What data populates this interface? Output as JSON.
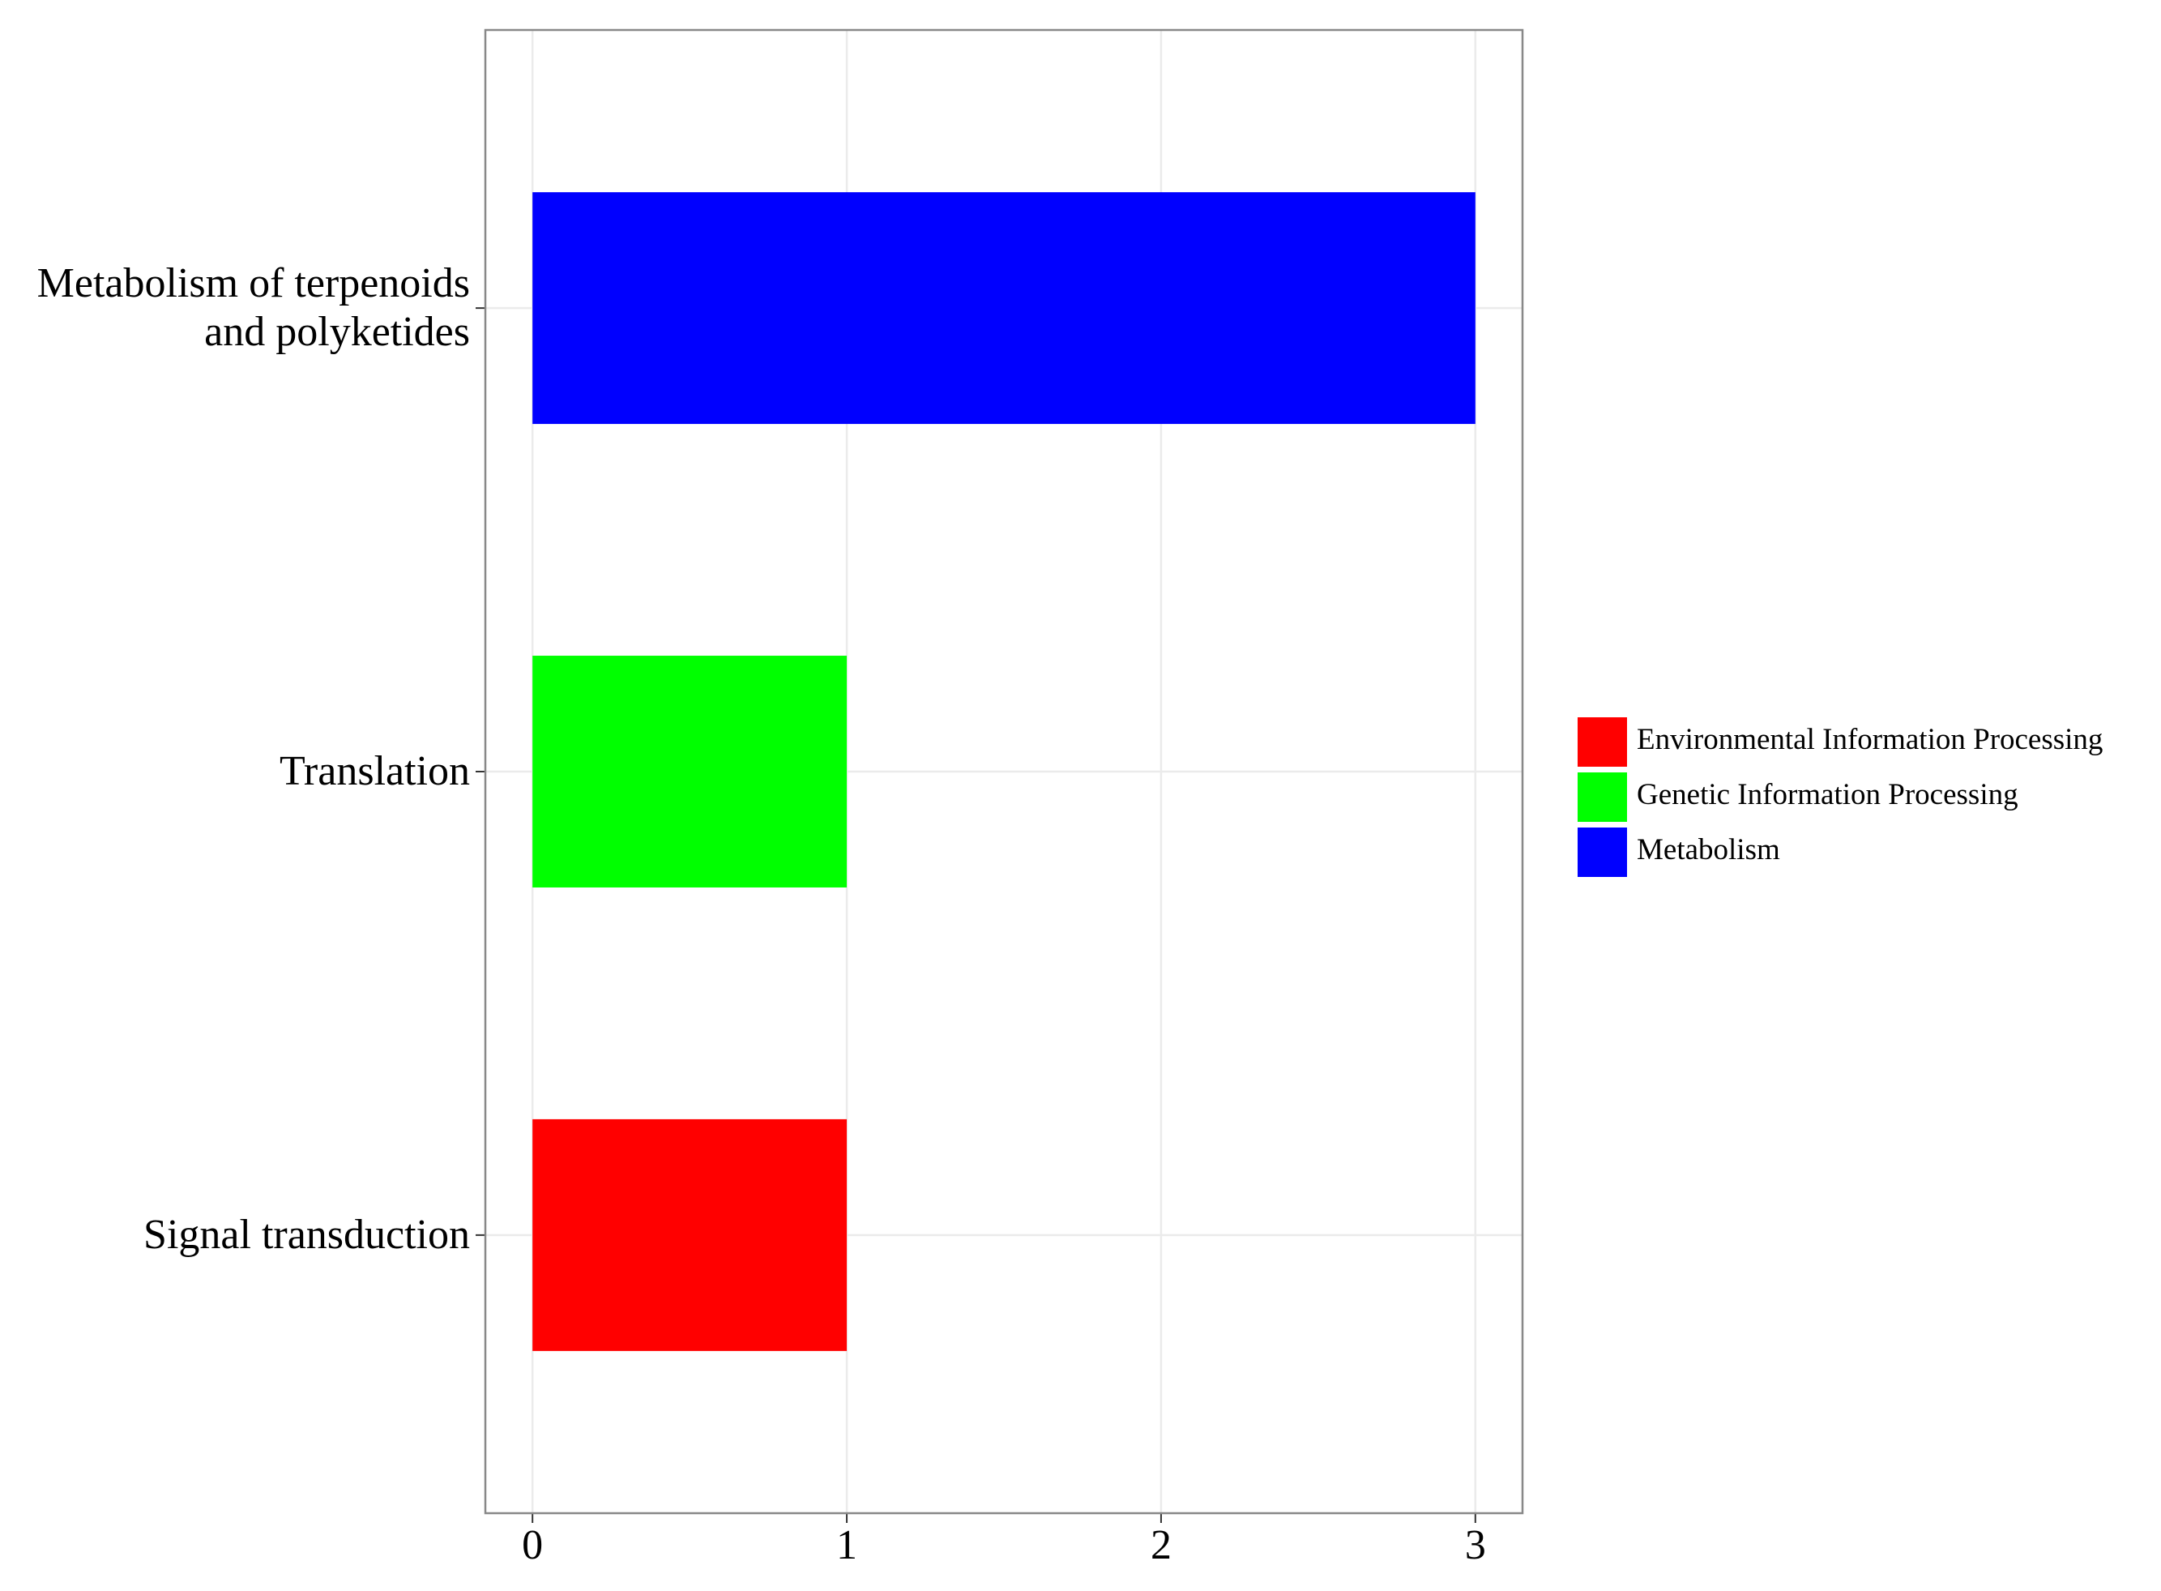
{
  "chart_data": {
    "type": "barh",
    "categories": [
      "Metabolism of terpenoids and polyketides",
      "Translation",
      "Signal transduction"
    ],
    "series": [
      {
        "name": "Environmental Information Processing",
        "color": "#ff0000",
        "values": [
          null,
          null,
          1
        ]
      },
      {
        "name": "Genetic Information Processing",
        "color": "#00ff00",
        "values": [
          null,
          1,
          null
        ]
      },
      {
        "name": "Metabolism",
        "color": "#0000ff",
        "values": [
          3,
          null,
          null
        ]
      }
    ],
    "xlim": [
      -0.15,
      3.15
    ],
    "xticks": [
      0,
      1,
      2,
      3
    ],
    "grid": true,
    "legend": "right"
  }
}
